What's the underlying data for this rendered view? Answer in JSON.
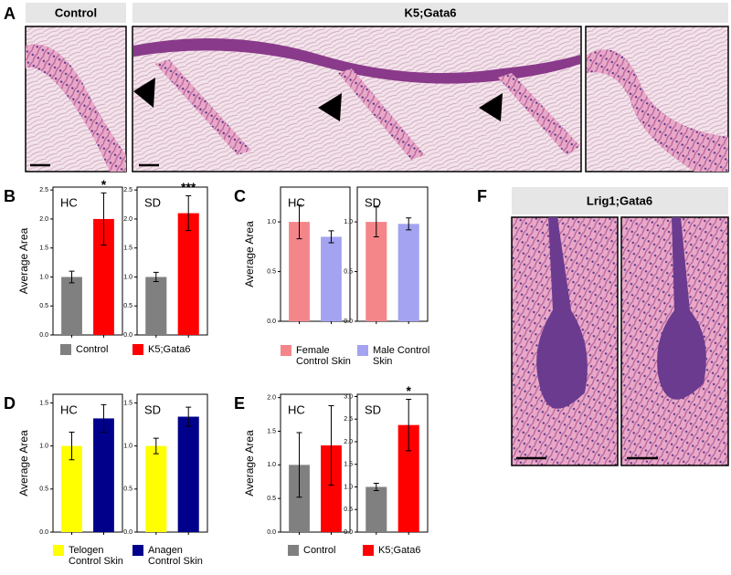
{
  "figure": {
    "panel_labels": [
      "A",
      "B",
      "C",
      "D",
      "E",
      "F"
    ],
    "headers": [
      "Control",
      "K5;Gata6",
      "Lrig1;Gata6"
    ]
  },
  "chart_data": [
    {
      "type": "bar",
      "ylabel": "Average Area",
      "series": [
        {
          "name": "Control",
          "color": "#808080",
          "values": [
            1.0,
            1.0
          ],
          "errors": [
            0.1,
            0.08
          ]
        },
        {
          "name": "K5;Gata6",
          "color": "#ff0000",
          "values": [
            2.0,
            2.1
          ],
          "errors": [
            0.45,
            0.3
          ]
        }
      ],
      "subplots": [
        {
          "title": "HC",
          "annotation": "*",
          "ylim": [
            0,
            2.55
          ],
          "yticks": [
            {
              "value": 0,
              "label": "0.0"
            },
            {
              "value": 0.5,
              "label": "0.5"
            },
            {
              "value": 1,
              "label": "1.0"
            },
            {
              "value": 1.5,
              "label": "1.5"
            },
            {
              "value": 2,
              "label": "2.0"
            },
            {
              "value": 2.5,
              "label": "2.5"
            }
          ]
        },
        {
          "title": "SD",
          "annotation": "***",
          "ylim": [
            0,
            2.55
          ],
          "yticks": [
            {
              "value": 0,
              "label": "0.0"
            },
            {
              "value": 0.5,
              "label": "0.5"
            },
            {
              "value": 1,
              "label": "1.0"
            },
            {
              "value": 1.5,
              "label": "1.5"
            },
            {
              "value": 2,
              "label": "2.0"
            },
            {
              "value": 2.5,
              "label": "2.5"
            }
          ]
        }
      ]
    },
    {
      "type": "bar",
      "ylabel": "Average Area",
      "series": [
        {
          "name": "Female Control Skin",
          "color": "#f4868a",
          "values": [
            1.0,
            1.0
          ],
          "errors": [
            0.17,
            0.15
          ]
        },
        {
          "name": "Male Control Skin",
          "color": "#a3a3f2",
          "values": [
            0.85,
            0.98
          ],
          "errors": [
            0.06,
            0.06
          ]
        }
      ],
      "subplots": [
        {
          "title": "HC",
          "ylim": [
            0,
            1.35
          ],
          "yticks": [
            {
              "value": 0,
              "label": "0.0"
            },
            {
              "value": 0.5,
              "label": "0.5"
            },
            {
              "value": 1,
              "label": "1.0"
            }
          ]
        },
        {
          "title": "SD",
          "ylim": [
            0,
            1.35
          ],
          "yticks": [
            {
              "value": 0,
              "label": "0.0"
            },
            {
              "value": 0.5,
              "label": "0.5"
            },
            {
              "value": 1,
              "label": "1.0"
            }
          ]
        }
      ]
    },
    {
      "type": "bar",
      "ylabel": "Average Area",
      "series": [
        {
          "name": "Telogen Control Skin",
          "color": "#ffff00",
          "values": [
            1.0,
            1.0
          ],
          "errors": [
            0.16,
            0.09
          ]
        },
        {
          "name": "Anagen Control Skin",
          "color": "#00008b",
          "values": [
            1.32,
            1.34
          ],
          "errors": [
            0.16,
            0.11
          ]
        }
      ],
      "subplots": [
        {
          "title": "HC",
          "ylim": [
            0,
            1.6
          ],
          "yticks": [
            {
              "value": 0,
              "label": "0.0"
            },
            {
              "value": 0.5,
              "label": "0.5"
            },
            {
              "value": 1,
              "label": "1.0"
            },
            {
              "value": 1.5,
              "label": "1.5"
            }
          ]
        },
        {
          "title": "SD",
          "ylim": [
            0,
            1.6
          ],
          "yticks": [
            {
              "value": 0,
              "label": "0.0"
            },
            {
              "value": 0.5,
              "label": "0.5"
            },
            {
              "value": 1,
              "label": "1.0"
            },
            {
              "value": 1.5,
              "label": "1.5"
            }
          ]
        }
      ]
    },
    {
      "type": "bar",
      "ylabel": "Average Area",
      "series": [
        {
          "name": "Control",
          "color": "#808080",
          "values": [
            1.0,
            1.0
          ],
          "errors": [
            0.48,
            0.08
          ]
        },
        {
          "name": "K5;Gata6",
          "color": "#ff0000",
          "values": [
            1.29,
            2.37
          ],
          "errors": [
            0.59,
            0.57
          ]
        }
      ],
      "subplots": [
        {
          "title": "HC",
          "ylim": [
            0,
            2.05
          ],
          "yticks": [
            {
              "value": 0,
              "label": "0.0"
            },
            {
              "value": 0.5,
              "label": "0.5"
            },
            {
              "value": 1,
              "label": "1.0"
            },
            {
              "value": 1.5,
              "label": "1.5"
            },
            {
              "value": 2,
              "label": "2.0"
            }
          ]
        },
        {
          "title": "SD",
          "annotation": "*",
          "ylim": [
            0,
            3.05
          ],
          "yticks": [
            {
              "value": 0,
              "label": "0.0"
            },
            {
              "value": 0.5,
              "label": "0.5"
            },
            {
              "value": 1,
              "label": "1.0"
            },
            {
              "value": 1.5,
              "label": "1.5"
            },
            {
              "value": 2,
              "label": "2.0"
            },
            {
              "value": 2.5,
              "label": "2.5"
            },
            {
              "value": 3,
              "label": "3.0"
            }
          ]
        }
      ]
    }
  ]
}
